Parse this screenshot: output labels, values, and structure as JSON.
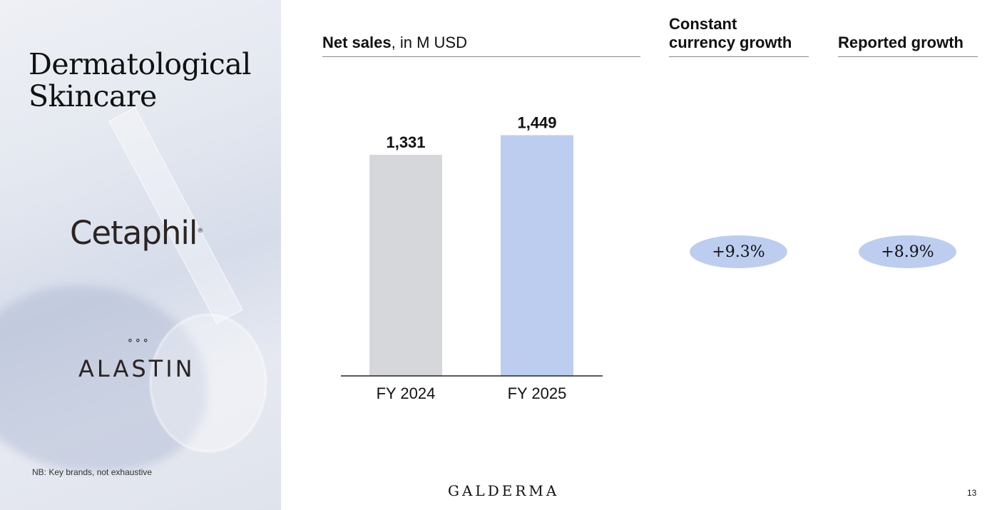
{
  "left_panel": {
    "title_line1": "Dermatological",
    "title_line2": "Skincare",
    "brands": [
      "Cetaphil",
      "ALASTIN"
    ],
    "note": "NB: Key brands, not exhaustive"
  },
  "headers": {
    "net_sales_bold": "Net sales",
    "net_sales_rest": ", in M USD",
    "cc_line1": "Constant",
    "cc_line2": "currency growth",
    "reported": "Reported growth"
  },
  "growth": {
    "constant_currency": "+9.3%",
    "reported": "+8.9%",
    "pill_color": "#bccdef"
  },
  "chart_data": {
    "type": "bar",
    "title": "Net sales, in M USD",
    "categories": [
      "FY 2024",
      "FY 2025"
    ],
    "values": [
      1331,
      1449
    ],
    "labels": [
      "1,331",
      "1,449"
    ],
    "colors": [
      "#d6d7db",
      "#bccdef"
    ],
    "ylim": [
      0,
      1500
    ],
    "grid": false
  },
  "footer": {
    "logo": "GALDERMA",
    "page_number": "13"
  }
}
